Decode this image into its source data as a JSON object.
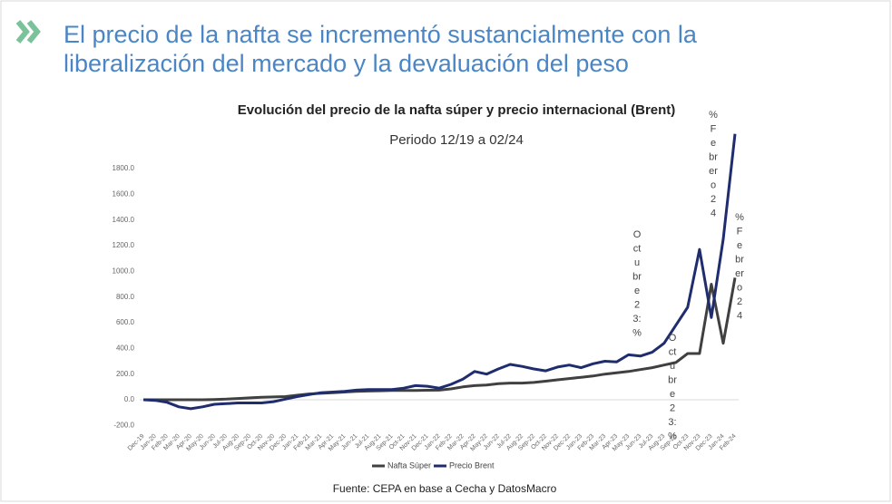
{
  "header": {
    "title_lines": [
      "El precio de la nafta se incrementó sustancialmente con la",
      "liberalización del mercado y la devaluación del peso"
    ]
  },
  "chart_data": {
    "type": "line",
    "title": "Evolución del precio de la nafta súper y precio internacional (Brent)",
    "subtitle": "Periodo 12/19 a 02/24",
    "categories": [
      "Dec-19",
      "Jan-20",
      "Feb-20",
      "Mar-20",
      "Apr-20",
      "May-20",
      "Jun-20",
      "Jul-20",
      "Aug-20",
      "Sep-20",
      "Oct-20",
      "Nov-20",
      "Dec-20",
      "Jan-21",
      "Feb-21",
      "Mar-21",
      "Apr-21",
      "May-21",
      "Jun-21",
      "Jul-21",
      "Aug-21",
      "Sep-21",
      "Oct-21",
      "Nov-21",
      "Dec-21",
      "Jan-22",
      "Feb-22",
      "Mar-22",
      "Apr-22",
      "May-22",
      "Jun-22",
      "Jul-22",
      "Aug-22",
      "Sep-22",
      "Oct-22",
      "Nov-22",
      "Dec-22",
      "Jan-23",
      "Feb-23",
      "Mar-23",
      "Apr-23",
      "May-23",
      "Jun-23",
      "Jul-23",
      "Aug-23",
      "Sep-23",
      "Oct-23",
      "Nov-23",
      "Dec-23",
      "Jan-24",
      "Feb-24"
    ],
    "series": [
      {
        "name": "Nafta Súper",
        "color": "#404040",
        "values": [
          0,
          0,
          0,
          0,
          0,
          0,
          2,
          5,
          10,
          15,
          20,
          22,
          25,
          35,
          45,
          50,
          55,
          60,
          65,
          68,
          70,
          72,
          72,
          73,
          74,
          75,
          85,
          100,
          110,
          115,
          125,
          130,
          130,
          135,
          145,
          155,
          165,
          175,
          185,
          200,
          210,
          220,
          235,
          250,
          270,
          290,
          360,
          360,
          900,
          440,
          950
        ]
      },
      {
        "name": "Precio Brent",
        "color": "#1f2d6e",
        "values": [
          0,
          -5,
          -20,
          -55,
          -70,
          -55,
          -35,
          -30,
          -25,
          -25,
          -25,
          -15,
          5,
          25,
          40,
          55,
          60,
          65,
          75,
          80,
          80,
          80,
          90,
          110,
          105,
          90,
          120,
          160,
          220,
          200,
          240,
          275,
          260,
          240,
          225,
          255,
          270,
          250,
          280,
          300,
          295,
          350,
          340,
          370,
          440,
          580,
          720,
          1170,
          640,
          1250,
          2070
        ]
      }
    ],
    "ylim": [
      -200,
      2100
    ],
    "yticks": [
      {
        "value": -200,
        "label": "-200.0"
      },
      {
        "value": 0,
        "label": "0.0"
      },
      {
        "value": 200,
        "label": "200.0"
      },
      {
        "value": 400,
        "label": "400.0"
      },
      {
        "value": 600,
        "label": "600.0"
      },
      {
        "value": 800,
        "label": "800.0"
      },
      {
        "value": 1000,
        "label": "1000.0"
      },
      {
        "value": 1200,
        "label": "1200.0"
      },
      {
        "value": 1400,
        "label": "1400.0"
      },
      {
        "value": 1600,
        "label": "1600.0"
      },
      {
        "value": 1800,
        "label": "1800.0"
      }
    ],
    "annotations": [
      {
        "lines": [
          "%",
          "F",
          "e",
          "br",
          "er",
          "o",
          "2",
          "4"
        ]
      },
      {
        "lines": [
          "O",
          "ct",
          "u",
          "br",
          "e",
          "2",
          "3:",
          "%"
        ]
      },
      {
        "lines": [
          "O",
          "ct",
          "u",
          "br",
          "e",
          "2",
          "3:",
          "%"
        ]
      },
      {
        "lines": [
          "%",
          "F",
          "e",
          "br",
          "er",
          "o",
          "2",
          "4"
        ]
      }
    ],
    "legend": "bottom"
  },
  "source": "Fuente: CEPA en base a Cecha y DatosMacro"
}
